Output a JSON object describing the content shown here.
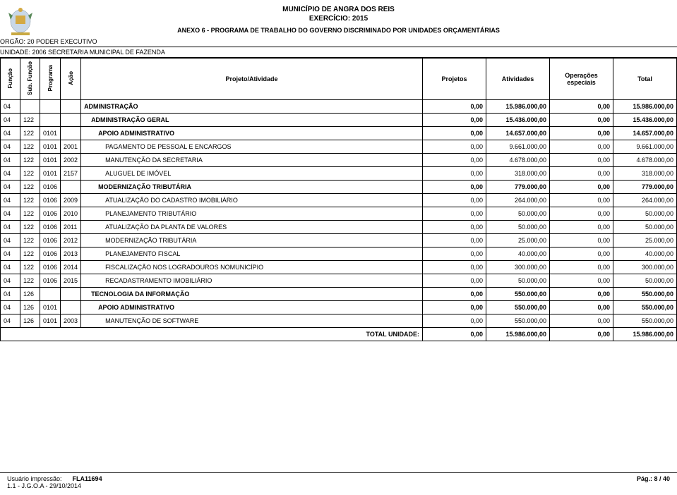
{
  "header": {
    "municipio": "MUNICÍPIO DE ANGRA DOS REIS",
    "exercicio": "EXERCÍCIO: 2015",
    "anexo": "ANEXO 6 - PROGRAMA DE TRABALHO DO GOVERNO DISCRIMINADO POR UNIDADES ORÇAMENTÁRIAS",
    "orgao": "ORGÃO: 20 PODER EXECUTIVO",
    "unidade": "UNIDADE: 2006 SECRETARIA MUNICIPAL DE FAZENDA"
  },
  "columns": {
    "funcao": "Função",
    "subfuncao": "Sub. Função",
    "programa": "Programa",
    "acao": "Ação",
    "projeto_atividade": "Projeto/Atividade",
    "projetos": "Projetos",
    "atividades": "Atividades",
    "operacoes": "Operações especiais",
    "total": "Total"
  },
  "rows": [
    {
      "c1": "04",
      "c2": "",
      "c3": "",
      "c4": "",
      "desc": "ADMINISTRAÇÃO",
      "proj": "0,00",
      "ativ": "15.986.000,00",
      "oper": "0,00",
      "total": "15.986.000,00",
      "indent": 0,
      "bold": true
    },
    {
      "c1": "04",
      "c2": "122",
      "c3": "",
      "c4": "",
      "desc": "ADMINISTRAÇÃO GERAL",
      "proj": "0,00",
      "ativ": "15.436.000,00",
      "oper": "0,00",
      "total": "15.436.000,00",
      "indent": 1,
      "bold": true
    },
    {
      "c1": "04",
      "c2": "122",
      "c3": "0101",
      "c4": "",
      "desc": "APOIO ADMINISTRATIVO",
      "proj": "0,00",
      "ativ": "14.657.000,00",
      "oper": "0,00",
      "total": "14.657.000,00",
      "indent": 2,
      "bold": true
    },
    {
      "c1": "04",
      "c2": "122",
      "c3": "0101",
      "c4": "2001",
      "desc": "PAGAMENTO DE PESSOAL E ENCARGOS",
      "proj": "0,00",
      "ativ": "9.661.000,00",
      "oper": "0,00",
      "total": "9.661.000,00",
      "indent": 3,
      "bold": false
    },
    {
      "c1": "04",
      "c2": "122",
      "c3": "0101",
      "c4": "2002",
      "desc": "MANUTENÇÃO DA SECRETARIA",
      "proj": "0,00",
      "ativ": "4.678.000,00",
      "oper": "0,00",
      "total": "4.678.000,00",
      "indent": 3,
      "bold": false
    },
    {
      "c1": "04",
      "c2": "122",
      "c3": "0101",
      "c4": "2157",
      "desc": "ALUGUEL DE IMÓVEL",
      "proj": "0,00",
      "ativ": "318.000,00",
      "oper": "0,00",
      "total": "318.000,00",
      "indent": 3,
      "bold": false
    },
    {
      "c1": "04",
      "c2": "122",
      "c3": "0106",
      "c4": "",
      "desc": "MODERNIZAÇÃO TRIBUTÁRIA",
      "proj": "0,00",
      "ativ": "779.000,00",
      "oper": "0,00",
      "total": "779.000,00",
      "indent": 2,
      "bold": true
    },
    {
      "c1": "04",
      "c2": "122",
      "c3": "0106",
      "c4": "2009",
      "desc": "ATUALIZAÇÃO DO CADASTRO IMOBILIÁRIO",
      "proj": "0,00",
      "ativ": "264.000,00",
      "oper": "0,00",
      "total": "264.000,00",
      "indent": 3,
      "bold": false
    },
    {
      "c1": "04",
      "c2": "122",
      "c3": "0106",
      "c4": "2010",
      "desc": "PLANEJAMENTO TRIBUTÁRIO",
      "proj": "0,00",
      "ativ": "50.000,00",
      "oper": "0,00",
      "total": "50.000,00",
      "indent": 3,
      "bold": false
    },
    {
      "c1": "04",
      "c2": "122",
      "c3": "0106",
      "c4": "2011",
      "desc": "ATUALIZAÇÃO DA PLANTA DE VALORES",
      "proj": "0,00",
      "ativ": "50.000,00",
      "oper": "0,00",
      "total": "50.000,00",
      "indent": 3,
      "bold": false
    },
    {
      "c1": "04",
      "c2": "122",
      "c3": "0106",
      "c4": "2012",
      "desc": "MODERNIZAÇÃO TRIBUTÁRIA",
      "proj": "0,00",
      "ativ": "25.000,00",
      "oper": "0,00",
      "total": "25.000,00",
      "indent": 3,
      "bold": false
    },
    {
      "c1": "04",
      "c2": "122",
      "c3": "0106",
      "c4": "2013",
      "desc": "PLANEJAMENTO FISCAL",
      "proj": "0,00",
      "ativ": "40.000,00",
      "oper": "0,00",
      "total": "40.000,00",
      "indent": 3,
      "bold": false
    },
    {
      "c1": "04",
      "c2": "122",
      "c3": "0106",
      "c4": "2014",
      "desc": "FISCALIZAÇÃO NOS LOGRADOUROS NOMUNICÍPIO",
      "proj": "0,00",
      "ativ": "300.000,00",
      "oper": "0,00",
      "total": "300.000,00",
      "indent": 3,
      "bold": false
    },
    {
      "c1": "04",
      "c2": "122",
      "c3": "0106",
      "c4": "2015",
      "desc": "RECADASTRAMENTO IMOBILIÁRIO",
      "proj": "0,00",
      "ativ": "50.000,00",
      "oper": "0,00",
      "total": "50.000,00",
      "indent": 3,
      "bold": false
    },
    {
      "c1": "04",
      "c2": "126",
      "c3": "",
      "c4": "",
      "desc": "TECNOLOGIA DA INFORMAÇÃO",
      "proj": "0,00",
      "ativ": "550.000,00",
      "oper": "0,00",
      "total": "550.000,00",
      "indent": 1,
      "bold": true
    },
    {
      "c1": "04",
      "c2": "126",
      "c3": "0101",
      "c4": "",
      "desc": "APOIO ADMINISTRATIVO",
      "proj": "0,00",
      "ativ": "550.000,00",
      "oper": "0,00",
      "total": "550.000,00",
      "indent": 2,
      "bold": true
    },
    {
      "c1": "04",
      "c2": "126",
      "c3": "0101",
      "c4": "2003",
      "desc": "MANUTENÇÃO DE SOFTWARE",
      "proj": "0,00",
      "ativ": "550.000,00",
      "oper": "0,00",
      "total": "550.000,00",
      "indent": 3,
      "bold": false
    }
  ],
  "total_row": {
    "label": "TOTAL UNIDADE:",
    "proj": "0,00",
    "ativ": "15.986.000,00",
    "oper": "0,00",
    "total": "15.986.000,00"
  },
  "footer": {
    "user_label": "Usuário impressão:",
    "user_value": "FLA11694",
    "bottom": "1.1 - J.G.O.A - 29/10/2014",
    "page": "Pág.: 8 / 40"
  }
}
